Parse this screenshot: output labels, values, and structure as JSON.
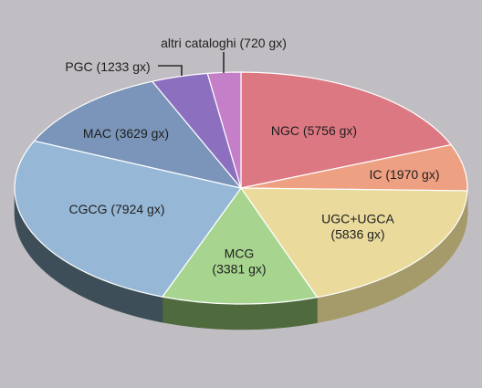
{
  "chart_data": {
    "type": "pie",
    "style": "3d-extruded",
    "slices": [
      {
        "key": "ngc",
        "label": "NGC (5756 gx)",
        "label_lines": [
          "NGC (5756 gx)"
        ],
        "value": 5756,
        "color": "#dc7882",
        "side_color": "#7f3f46"
      },
      {
        "key": "ic",
        "label": "IC (1970 gx)",
        "label_lines": [
          "IC (1970 gx)"
        ],
        "value": 1970,
        "color": "#eea083",
        "side_color": "#8e5a47"
      },
      {
        "key": "ugc",
        "label": "UGC+UGCA (5836 gx)",
        "label_lines": [
          "UGC+UGCA",
          "(5836 gx)"
        ],
        "value": 5836,
        "color": "#eadb9d",
        "side_color": "#a49a6a"
      },
      {
        "key": "mcg",
        "label": "MCG (3381 gx)",
        "label_lines": [
          "MCG",
          "(3381 gx)"
        ],
        "value": 3381,
        "color": "#a7d58f",
        "side_color": "#4f6a3c"
      },
      {
        "key": "cgcg",
        "label": "CGCG (7924 gx)",
        "label_lines": [
          "CGCG (7924 gx)"
        ],
        "value": 7924,
        "color": "#96b8d6",
        "side_color": "#3d4e58"
      },
      {
        "key": "mac",
        "label": "MAC (3629 gx)",
        "label_lines": [
          "MAC (3629 gx)"
        ],
        "value": 3629,
        "color": "#7a95b9",
        "side_color": "#3a4a5e"
      },
      {
        "key": "pgc",
        "label": "PGC (1233 gx)",
        "label_lines": [
          "PGC (1233 gx)"
        ],
        "value": 1233,
        "color": "#8d6fc0",
        "side_color": "#4a3a66"
      },
      {
        "key": "altri",
        "label": "altri cataloghi (720 gx)",
        "label_lines": [
          "altri cataloghi (720 gx)"
        ],
        "value": 720,
        "color": "#c57ec8",
        "side_color": "#6a4470"
      }
    ],
    "unit": "gx",
    "legend": "none",
    "colors": {
      "background": "#c1bec3",
      "outline": "#ffffff",
      "text": "#1e1e1e",
      "leader": "#2a2a2a"
    }
  }
}
